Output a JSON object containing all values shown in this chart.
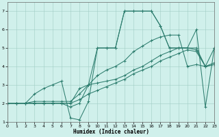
{
  "xlabel": "Humidex (Indice chaleur)",
  "xlim": [
    0,
    23
  ],
  "ylim": [
    1,
    7.5
  ],
  "yticks": [
    1,
    2,
    3,
    4,
    5,
    6,
    7
  ],
  "xticks": [
    0,
    1,
    2,
    3,
    4,
    5,
    6,
    7,
    8,
    9,
    10,
    11,
    12,
    13,
    14,
    15,
    16,
    17,
    18,
    19,
    20,
    21,
    22,
    23
  ],
  "line_color": "#2d7d6e",
  "bg_color": "#d0f0eb",
  "grid_color": "#a0cdc5",
  "curves": [
    [
      2.0,
      2.0,
      2.0,
      2.1,
      2.1,
      2.1,
      2.1,
      2.1,
      2.5,
      3.0,
      3.5,
      3.8,
      4.0,
      4.3,
      4.8,
      5.1,
      5.4,
      5.6,
      5.7,
      5.7,
      4.0,
      4.1,
      4.0,
      4.1
    ],
    [
      2.0,
      2.0,
      2.0,
      2.5,
      2.8,
      3.0,
      3.2,
      1.2,
      1.1,
      2.1,
      5.0,
      5.0,
      5.0,
      7.0,
      7.0,
      7.0,
      7.0,
      6.2,
      5.0,
      5.0,
      5.0,
      6.0,
      1.8,
      5.0
    ],
    [
      2.0,
      2.0,
      2.0,
      2.0,
      2.0,
      2.0,
      2.0,
      1.8,
      2.0,
      3.0,
      5.0,
      5.0,
      5.0,
      7.0,
      7.0,
      7.0,
      7.0,
      6.2,
      5.0,
      5.0,
      5.0,
      5.0,
      4.0,
      5.0
    ],
    [
      2.0,
      2.0,
      2.0,
      2.0,
      2.0,
      2.0,
      2.0,
      2.0,
      2.8,
      3.0,
      3.1,
      3.2,
      3.3,
      3.5,
      3.8,
      4.0,
      4.3,
      4.6,
      4.8,
      5.0,
      5.0,
      4.9,
      4.0,
      4.1
    ],
    [
      2.0,
      2.0,
      2.0,
      2.0,
      2.0,
      2.0,
      2.0,
      2.0,
      2.2,
      2.5,
      2.7,
      2.9,
      3.1,
      3.3,
      3.6,
      3.8,
      4.0,
      4.3,
      4.5,
      4.7,
      4.9,
      4.8,
      4.0,
      4.2
    ]
  ]
}
